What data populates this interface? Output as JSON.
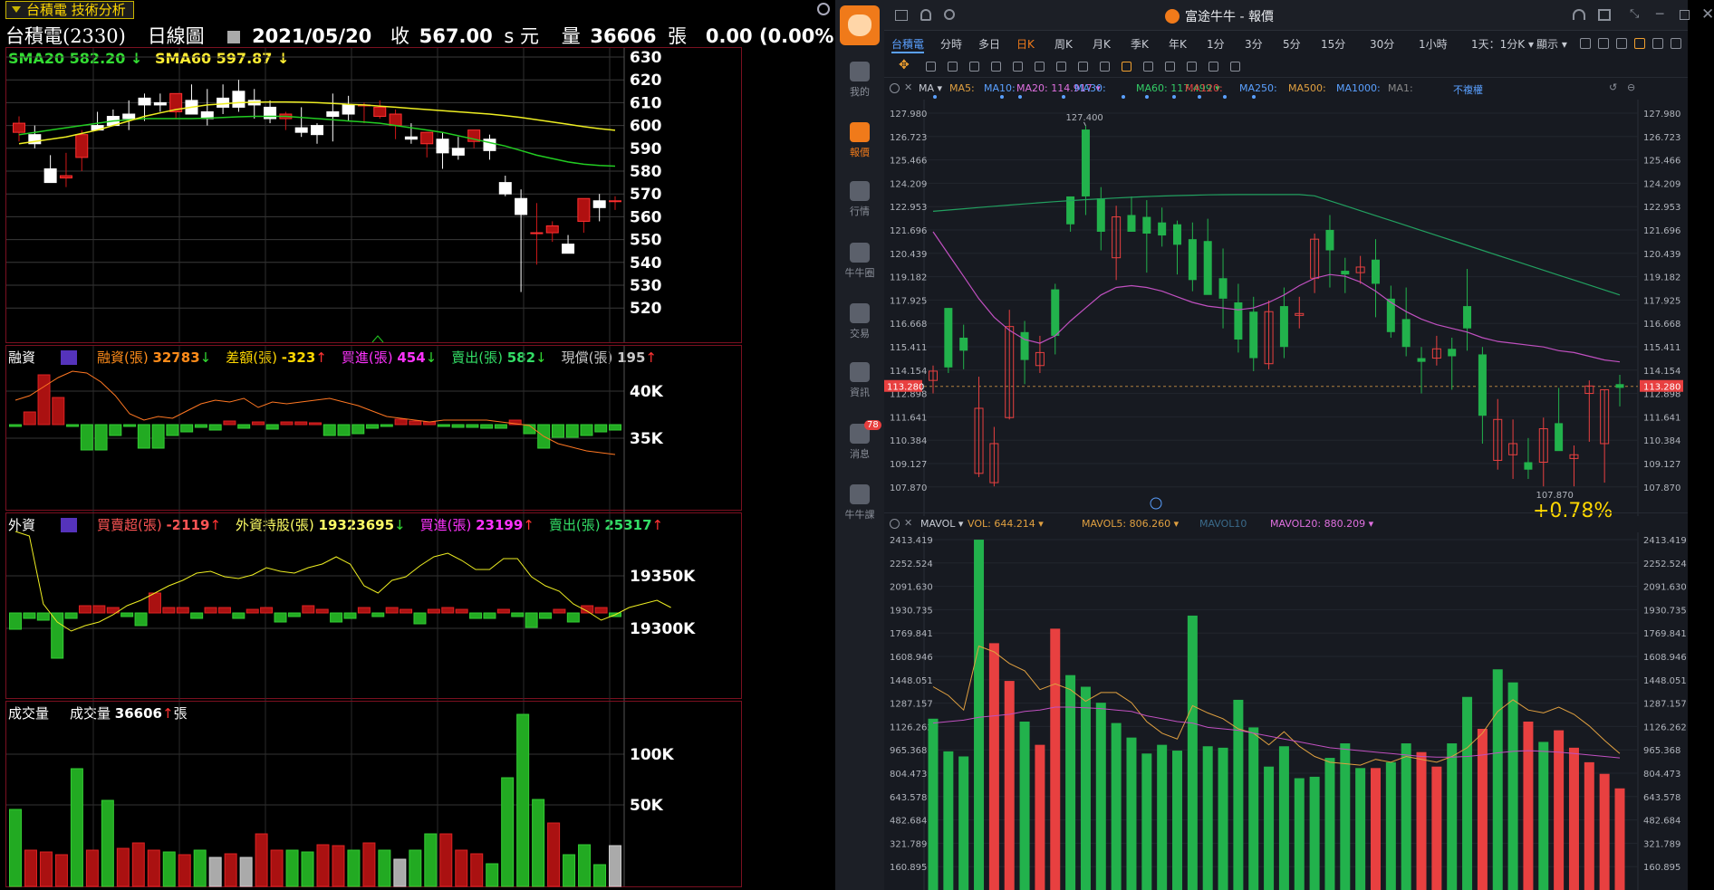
{
  "left": {
    "tab_label": "台積電 技術分析",
    "header": {
      "stock": "台積電(2330)",
      "chart_type": "日線圖",
      "date": "2021/05/20",
      "close_label": "收",
      "close_value": "567.00",
      "close_unit": "s 元",
      "volume_label": "量",
      "volume_value": "36606",
      "volume_unit": "張",
      "change": "0.00 (0.00%)"
    },
    "price_panel": {
      "sma20_label": "SMA20 582.20",
      "sma60_label": "SMA60 597.87",
      "axis": [
        "630",
        "620",
        "610",
        "600",
        "590",
        "580",
        "570",
        "560",
        "550",
        "540",
        "530",
        "520"
      ]
    },
    "margin_panel": {
      "title": "融資",
      "stats": [
        {
          "label": "融資(張)",
          "value": "32783",
          "dir": "down",
          "color": "#ff8c1a"
        },
        {
          "label": "差額(張)",
          "value": "-323",
          "dir": "up",
          "color": "#ffd700"
        },
        {
          "label": "買進(張)",
          "value": "454",
          "dir": "down",
          "color": "#ff33ff"
        },
        {
          "label": "賣出(張)",
          "value": "582",
          "dir": "down",
          "color": "#33dd66"
        },
        {
          "label": "現償(張)",
          "value": "195",
          "dir": "up",
          "color": "#c8c8c8"
        }
      ],
      "axis": [
        "40K",
        "35K"
      ]
    },
    "foreign_panel": {
      "title": "外資",
      "stats": [
        {
          "label": "買賣超(張)",
          "value": "-2119",
          "dir": "up",
          "color": "#ff5555"
        },
        {
          "label": "外資持股(張)",
          "value": "19323695",
          "dir": "down",
          "color": "#ffff66"
        },
        {
          "label": "買進(張)",
          "value": "23199",
          "dir": "up",
          "color": "#ff33ff"
        },
        {
          "label": "賣出(張)",
          "value": "25317",
          "dir": "up",
          "color": "#33dd66"
        }
      ],
      "axis": [
        "19350K",
        "19300K"
      ]
    },
    "volume_panel": {
      "title": "成交量",
      "label": "成交量",
      "value": "36606",
      "unit": "張",
      "axis": [
        "100K",
        "50K"
      ]
    }
  },
  "right": {
    "title": "富途牛牛 - 報價",
    "sidebar": [
      {
        "label": "我的",
        "icon": "user-icon"
      },
      {
        "label": "報價",
        "icon": "chart-bar-icon"
      },
      {
        "label": "行情",
        "icon": "trend-icon"
      },
      {
        "label": "牛牛圈",
        "icon": "community-icon"
      },
      {
        "label": "交易",
        "icon": "trade-icon"
      },
      {
        "label": "資訊",
        "icon": "news-icon"
      },
      {
        "label": "消息",
        "icon": "message-icon",
        "badge": "78"
      },
      {
        "label": "牛牛課",
        "icon": "class-icon"
      }
    ],
    "period_tabs": [
      "台積電",
      "分時",
      "多日",
      "日K",
      "周K",
      "月K",
      "季K",
      "年K",
      "1分",
      "3分",
      "5分",
      "15分",
      "30分",
      "1小時"
    ],
    "active_tab": "日K",
    "period_select": "1天：1分K",
    "display_label": "顯示",
    "ma_bar": {
      "ma": "MA",
      "items": [
        {
          "label": "MA5:",
          "color": "#e0a040"
        },
        {
          "label": "MA10:",
          "color": "#5aa0ff"
        },
        {
          "label": "MA20: 114.917",
          "color": "#e070e0"
        },
        {
          "label": "MA30:",
          "color": "#5aa0ff"
        },
        {
          "label": "MA60: 117.499",
          "color": "#33cc66"
        },
        {
          "label": "MA120:",
          "color": "#e04040"
        },
        {
          "label": "MA250:",
          "color": "#5aa0ff"
        },
        {
          "label": "MA500:",
          "color": "#e0a040"
        },
        {
          "label": "MA1000:",
          "color": "#5aa0ff"
        },
        {
          "label": "MA1:",
          "color": "#888888"
        }
      ],
      "adjust": "不複權"
    },
    "price_axis": [
      "127.980",
      "126.723",
      "125.466",
      "124.209",
      "122.953",
      "121.696",
      "120.439",
      "119.182",
      "117.925",
      "116.668",
      "115.411",
      "114.154",
      "112.898",
      "111.641",
      "110.384",
      "109.127",
      "107.870"
    ],
    "current_price": "113.280",
    "high_label": "127.400",
    "low_label": "107.870",
    "change_pct": "+0.78%",
    "vol_bar": {
      "name": "MAVOL",
      "vol": "VOL: 644.214",
      "mavol5": "MAVOL5: 806.260",
      "mavol10": "MAVOL10",
      "mavol20": "MAVOL20: 880.209"
    },
    "vol_axis": [
      "2413.419",
      "2252.524",
      "2091.630",
      "1930.735",
      "1769.841",
      "1608.946",
      "1448.051",
      "1287.157",
      "1126.262",
      "965.368",
      "804.473",
      "643.578",
      "482.684",
      "321.789",
      "160.895"
    ]
  },
  "colors": {
    "left_up": "#b01010",
    "left_down": "#ffffff",
    "left_vol_up": "#22aa22",
    "left_vol_down": "#aa1111",
    "right_up": "#e84040",
    "right_down": "#22b24c"
  }
}
